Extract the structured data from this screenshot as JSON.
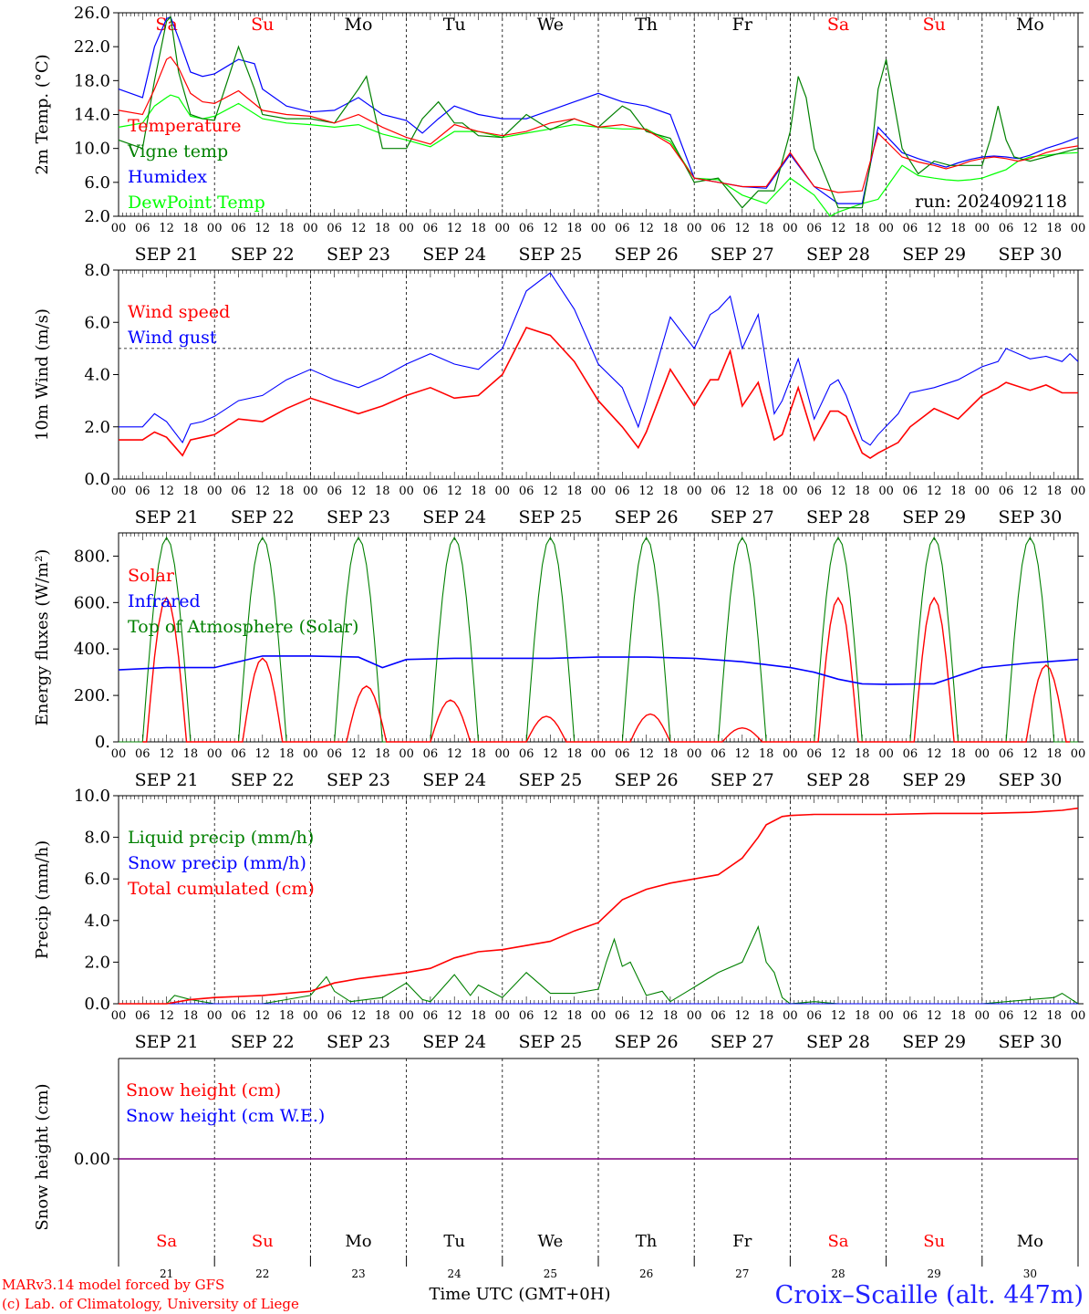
{
  "chart_data": [
    {
      "type": "line",
      "ylabel": "2m Temp. (°C)",
      "ylim": [
        2.0,
        26.0
      ],
      "yticks": [
        "2.0",
        "6.0",
        "10.0",
        "14.0",
        "18.0",
        "22.0",
        "26.0"
      ],
      "xlim_hours": [
        0,
        240
      ],
      "x_hour_labels": [
        "00",
        "06",
        "12",
        "18"
      ],
      "date_labels": [
        "SEP 21",
        "SEP 22",
        "SEP 23",
        "SEP 24",
        "SEP 25",
        "SEP 26",
        "SEP 27",
        "SEP 28",
        "SEP 29",
        "SEP 30"
      ],
      "day_names": [
        "Sa",
        "Su",
        "Mo",
        "Tu",
        "We",
        "Th",
        "Fr",
        "Sa",
        "Su",
        "Mo"
      ],
      "weekend_color": "#ff0000",
      "annotation": "run: 2024092118",
      "series": [
        {
          "name": "Temperature",
          "color": "#ff0000",
          "x": [
            0,
            6,
            9,
            12,
            13,
            15,
            18,
            21,
            24,
            30,
            36,
            42,
            48,
            54,
            60,
            66,
            72,
            78,
            84,
            90,
            96,
            102,
            108,
            114,
            120,
            126,
            132,
            138,
            144,
            150,
            156,
            162,
            168,
            174,
            180,
            186,
            190,
            196,
            200,
            204,
            207,
            210,
            213,
            216,
            219,
            222,
            225,
            228,
            232,
            236,
            240
          ],
          "values": [
            14.5,
            14,
            17,
            20.5,
            20.8,
            19.5,
            16.5,
            15.5,
            15.3,
            16.8,
            14.5,
            14,
            13.8,
            13,
            14,
            12.5,
            11.3,
            10.5,
            12.8,
            12,
            11.5,
            12,
            13,
            13.5,
            12.5,
            12.8,
            12.2,
            10.5,
            6.5,
            6,
            5.5,
            5.5,
            9.5,
            5.5,
            4.8,
            5,
            11.8,
            9,
            8.4,
            8,
            7.6,
            8,
            8.5,
            8.8,
            9,
            8.8,
            8.5,
            8.8,
            9.5,
            10,
            10.3
          ]
        },
        {
          "name": "Vigne temp",
          "color": "#008000",
          "x": [
            0,
            6,
            9,
            12,
            13,
            15,
            18,
            21,
            24,
            30,
            34,
            36,
            42,
            48,
            54,
            60,
            62,
            66,
            72,
            76,
            80,
            84,
            86,
            90,
            96,
            102,
            108,
            114,
            120,
            126,
            128,
            132,
            138,
            144,
            150,
            156,
            160,
            164,
            168,
            170,
            172,
            174,
            180,
            186,
            188,
            190,
            192,
            196,
            200,
            204,
            208,
            212,
            216,
            218,
            220,
            222,
            224,
            228,
            232,
            236,
            240
          ],
          "values": [
            11,
            10,
            18,
            25,
            25.5,
            19,
            14,
            13.5,
            13.3,
            22,
            17,
            14,
            13.5,
            13.5,
            13,
            17,
            18.5,
            10,
            10,
            13.5,
            15.5,
            13,
            13,
            11.5,
            11.3,
            14,
            12.2,
            13.5,
            12.5,
            15,
            14.5,
            12,
            11.2,
            6,
            6.5,
            3,
            5,
            5,
            12,
            18.5,
            16,
            10,
            3,
            3,
            8,
            17,
            20.5,
            10,
            7,
            8.5,
            8,
            8,
            8,
            11,
            15,
            11,
            9,
            8.5,
            9,
            9.5,
            10
          ]
        },
        {
          "name": "Humidex",
          "color": "#0000ff",
          "x": [
            0,
            6,
            9,
            12,
            13,
            15,
            18,
            21,
            24,
            30,
            34,
            36,
            42,
            48,
            54,
            60,
            66,
            72,
            76,
            80,
            84,
            90,
            96,
            102,
            108,
            114,
            120,
            126,
            132,
            138,
            144,
            150,
            156,
            162,
            168,
            174,
            180,
            186,
            190,
            196,
            200,
            204,
            207,
            210,
            213,
            216,
            219,
            222,
            225,
            228,
            232,
            236,
            240
          ],
          "values": [
            17,
            16,
            22,
            25.3,
            25.5,
            23,
            19,
            18.5,
            18.8,
            20.5,
            20,
            17,
            15,
            14.3,
            14.5,
            16,
            14,
            13.3,
            11.8,
            13.5,
            15,
            14,
            13.5,
            13.5,
            14.5,
            15.5,
            16.5,
            15.5,
            15,
            14,
            6.5,
            6,
            5.5,
            5.3,
            9.3,
            5.5,
            3.5,
            3.5,
            12.5,
            9.5,
            8.8,
            8.2,
            7.8,
            8.3,
            8.7,
            9,
            9.1,
            9,
            8.8,
            9.2,
            10,
            10.6,
            11.3
          ]
        },
        {
          "name": "DewPoint Temp",
          "color": "#00ff00",
          "x": [
            0,
            6,
            9,
            12,
            13,
            15,
            18,
            21,
            24,
            30,
            36,
            42,
            48,
            54,
            60,
            66,
            72,
            78,
            84,
            90,
            96,
            102,
            108,
            114,
            120,
            126,
            132,
            138,
            144,
            150,
            156,
            162,
            168,
            174,
            178,
            180,
            186,
            190,
            196,
            200,
            204,
            207,
            210,
            213,
            216,
            219,
            222,
            225,
            228,
            232,
            236,
            240
          ],
          "values": [
            12.5,
            13,
            15,
            16,
            16.3,
            16,
            13.8,
            13.5,
            13.8,
            15.3,
            13.5,
            13,
            12.8,
            12.5,
            12.8,
            11.7,
            11,
            10.2,
            12,
            12,
            11.3,
            11.8,
            12.3,
            12.8,
            12.5,
            12.3,
            12.3,
            10.8,
            6.5,
            6.3,
            4.5,
            3.5,
            6.5,
            4.5,
            2,
            2.5,
            3.5,
            4,
            8,
            6.8,
            6.5,
            6.3,
            6.2,
            6.3,
            6.5,
            7,
            7.5,
            8.5,
            9,
            9.2,
            9.4,
            9.5
          ]
        }
      ]
    },
    {
      "type": "line",
      "ylabel": "10m Wind (m/s)",
      "ylim": [
        0.0,
        8.0
      ],
      "yticks": [
        "0.0",
        "2.0",
        "4.0",
        "6.0",
        "8.0"
      ],
      "reference_line": 5.0,
      "series": [
        {
          "name": "Wind speed",
          "color": "#ff0000",
          "x": [
            0,
            6,
            9,
            12,
            16,
            18,
            21,
            24,
            30,
            36,
            42,
            48,
            54,
            60,
            66,
            72,
            78,
            84,
            90,
            96,
            102,
            108,
            114,
            120,
            126,
            130,
            132,
            138,
            144,
            148,
            150,
            153,
            156,
            160,
            164,
            166,
            170,
            174,
            178,
            180,
            182,
            186,
            188,
            190,
            195,
            198,
            204,
            210,
            216,
            220,
            222,
            228,
            232,
            236,
            238,
            240
          ],
          "values": [
            1.5,
            1.5,
            1.8,
            1.6,
            0.9,
            1.5,
            1.6,
            1.7,
            2.3,
            2.2,
            2.7,
            3.1,
            2.8,
            2.5,
            2.8,
            3.2,
            3.5,
            3.1,
            3.2,
            4.0,
            5.8,
            5.5,
            4.5,
            3.0,
            2.0,
            1.2,
            1.8,
            4.2,
            2.8,
            3.8,
            3.8,
            4.9,
            2.8,
            3.7,
            1.5,
            1.7,
            3.5,
            1.5,
            2.6,
            2.6,
            2.4,
            1.0,
            0.8,
            1.0,
            1.4,
            2.0,
            2.7,
            2.3,
            3.2,
            3.5,
            3.7,
            3.4,
            3.6,
            3.3,
            3.3,
            3.3
          ]
        },
        {
          "name": "Wind gust",
          "color": "#0000ff",
          "x": [
            0,
            6,
            9,
            12,
            16,
            18,
            21,
            24,
            30,
            36,
            42,
            48,
            54,
            60,
            66,
            72,
            78,
            84,
            90,
            96,
            102,
            108,
            114,
            120,
            126,
            130,
            132,
            138,
            144,
            148,
            150,
            153,
            156,
            160,
            164,
            166,
            170,
            174,
            178,
            180,
            182,
            186,
            188,
            190,
            195,
            198,
            204,
            210,
            216,
            220,
            222,
            228,
            232,
            236,
            238,
            240
          ],
          "values": [
            2.0,
            2.0,
            2.5,
            2.2,
            1.4,
            2.1,
            2.2,
            2.4,
            3.0,
            3.2,
            3.8,
            4.2,
            3.8,
            3.5,
            3.9,
            4.4,
            4.8,
            4.4,
            4.2,
            5.0,
            7.2,
            7.9,
            6.5,
            4.4,
            3.5,
            2.0,
            3.0,
            6.2,
            5.0,
            6.3,
            6.5,
            7.0,
            5.0,
            6.3,
            2.5,
            3.0,
            4.6,
            2.3,
            3.6,
            3.8,
            3.2,
            1.5,
            1.3,
            1.7,
            2.5,
            3.3,
            3.5,
            3.8,
            4.3,
            4.5,
            5.0,
            4.6,
            4.7,
            4.5,
            4.8,
            4.5
          ]
        }
      ]
    },
    {
      "type": "line",
      "ylabel": "Energy fluxes (W/m²)",
      "ylim": [
        0,
        900
      ],
      "yticks": [
        "0.",
        "200.",
        "400.",
        "600.",
        "800."
      ],
      "series": [
        {
          "name": "Solar",
          "color": "#ff0000",
          "peaks": [
            620,
            360,
            240,
            180,
            110,
            120,
            60,
            620,
            620,
            330
          ],
          "peak_hours": [
            12,
            36,
            62,
            83,
            107,
            133,
            156,
            180,
            204,
            232
          ]
        },
        {
          "name": "Infrared",
          "color": "#0000ff",
          "x": [
            0,
            12,
            24,
            36,
            48,
            60,
            66,
            72,
            84,
            96,
            108,
            120,
            132,
            144,
            156,
            168,
            174,
            180,
            186,
            192,
            204,
            216,
            228,
            240
          ],
          "values": [
            310,
            320,
            320,
            370,
            370,
            365,
            320,
            355,
            360,
            360,
            360,
            365,
            365,
            360,
            345,
            320,
            300,
            270,
            250,
            248,
            250,
            320,
            340,
            355
          ]
        },
        {
          "name": "Top of Atmosphere (Solar)",
          "color": "#008000",
          "peak": 880,
          "day_hours": [
            6,
            18
          ]
        }
      ]
    },
    {
      "type": "line",
      "ylabel": "Precip (mm/h)",
      "ylim": [
        0.0,
        10.0
      ],
      "yticks": [
        "0.0",
        "2.0",
        "4.0",
        "6.0",
        "8.0",
        "10.0"
      ],
      "series": [
        {
          "name": "Liquid precip (mm/h)",
          "color": "#008000",
          "x": [
            0,
            12,
            14,
            18,
            24,
            36,
            48,
            52,
            54,
            58,
            66,
            72,
            76,
            78,
            84,
            88,
            90,
            96,
            102,
            108,
            114,
            120,
            122,
            124,
            126,
            128,
            132,
            136,
            138,
            144,
            150,
            156,
            160,
            162,
            164,
            166,
            168,
            174,
            180,
            216,
            228,
            234,
            236,
            240
          ],
          "values": [
            0,
            0,
            0.4,
            0.2,
            0,
            0,
            0.4,
            1.3,
            0.6,
            0.1,
            0.3,
            1.0,
            0.2,
            0.1,
            1.4,
            0.4,
            0.9,
            0.3,
            1.5,
            0.5,
            0.5,
            0.7,
            2.0,
            3.1,
            1.8,
            2.0,
            0.4,
            0.6,
            0.1,
            0.8,
            1.5,
            2.0,
            3.7,
            2.0,
            1.5,
            0.3,
            0,
            0.1,
            0,
            0,
            0.2,
            0.3,
            0.5,
            0
          ]
        },
        {
          "name": "Snow precip (mm/h)",
          "color": "#0000ff",
          "x": [
            0,
            240
          ],
          "values": [
            0,
            0
          ]
        },
        {
          "name": "Total cumulated (cm)",
          "color": "#ff0000",
          "x": [
            0,
            12,
            18,
            24,
            36,
            48,
            54,
            60,
            72,
            78,
            84,
            90,
            96,
            108,
            114,
            120,
            126,
            132,
            138,
            144,
            150,
            156,
            160,
            162,
            166,
            168,
            174,
            180,
            192,
            204,
            216,
            228,
            236,
            240
          ],
          "values": [
            0,
            0,
            0.2,
            0.3,
            0.4,
            0.6,
            1.0,
            1.2,
            1.5,
            1.7,
            2.2,
            2.5,
            2.6,
            3.0,
            3.5,
            3.9,
            5.0,
            5.5,
            5.8,
            6.0,
            6.2,
            7.0,
            8.0,
            8.6,
            9.0,
            9.05,
            9.1,
            9.1,
            9.1,
            9.15,
            9.15,
            9.2,
            9.3,
            9.4
          ]
        }
      ]
    },
    {
      "type": "line",
      "ylabel": "Snow height (cm)",
      "ytick": "0.00",
      "series": [
        {
          "name": "Snow height (cm)",
          "color": "#ff0000",
          "x": [
            0,
            240
          ],
          "values": [
            0,
            0
          ]
        },
        {
          "name": "Snow height (cm W.E.)",
          "color": "#0000ff",
          "x": [
            0,
            240
          ],
          "values": [
            0,
            0
          ]
        }
      ],
      "day_numbers": [
        "21",
        "22",
        "23",
        "24",
        "25",
        "26",
        "27",
        "28",
        "29",
        "30"
      ],
      "xlabel": "Time UTC (GMT+0H)"
    }
  ],
  "footer": {
    "credit_line1": "MARv3.14 model forced by GFS",
    "credit_line2": "(c) Lab. of Climatology, University of Liege",
    "xlabel": "Time UTC (GMT+0H)",
    "station": "Croix–Scaille (alt. 447m)"
  }
}
